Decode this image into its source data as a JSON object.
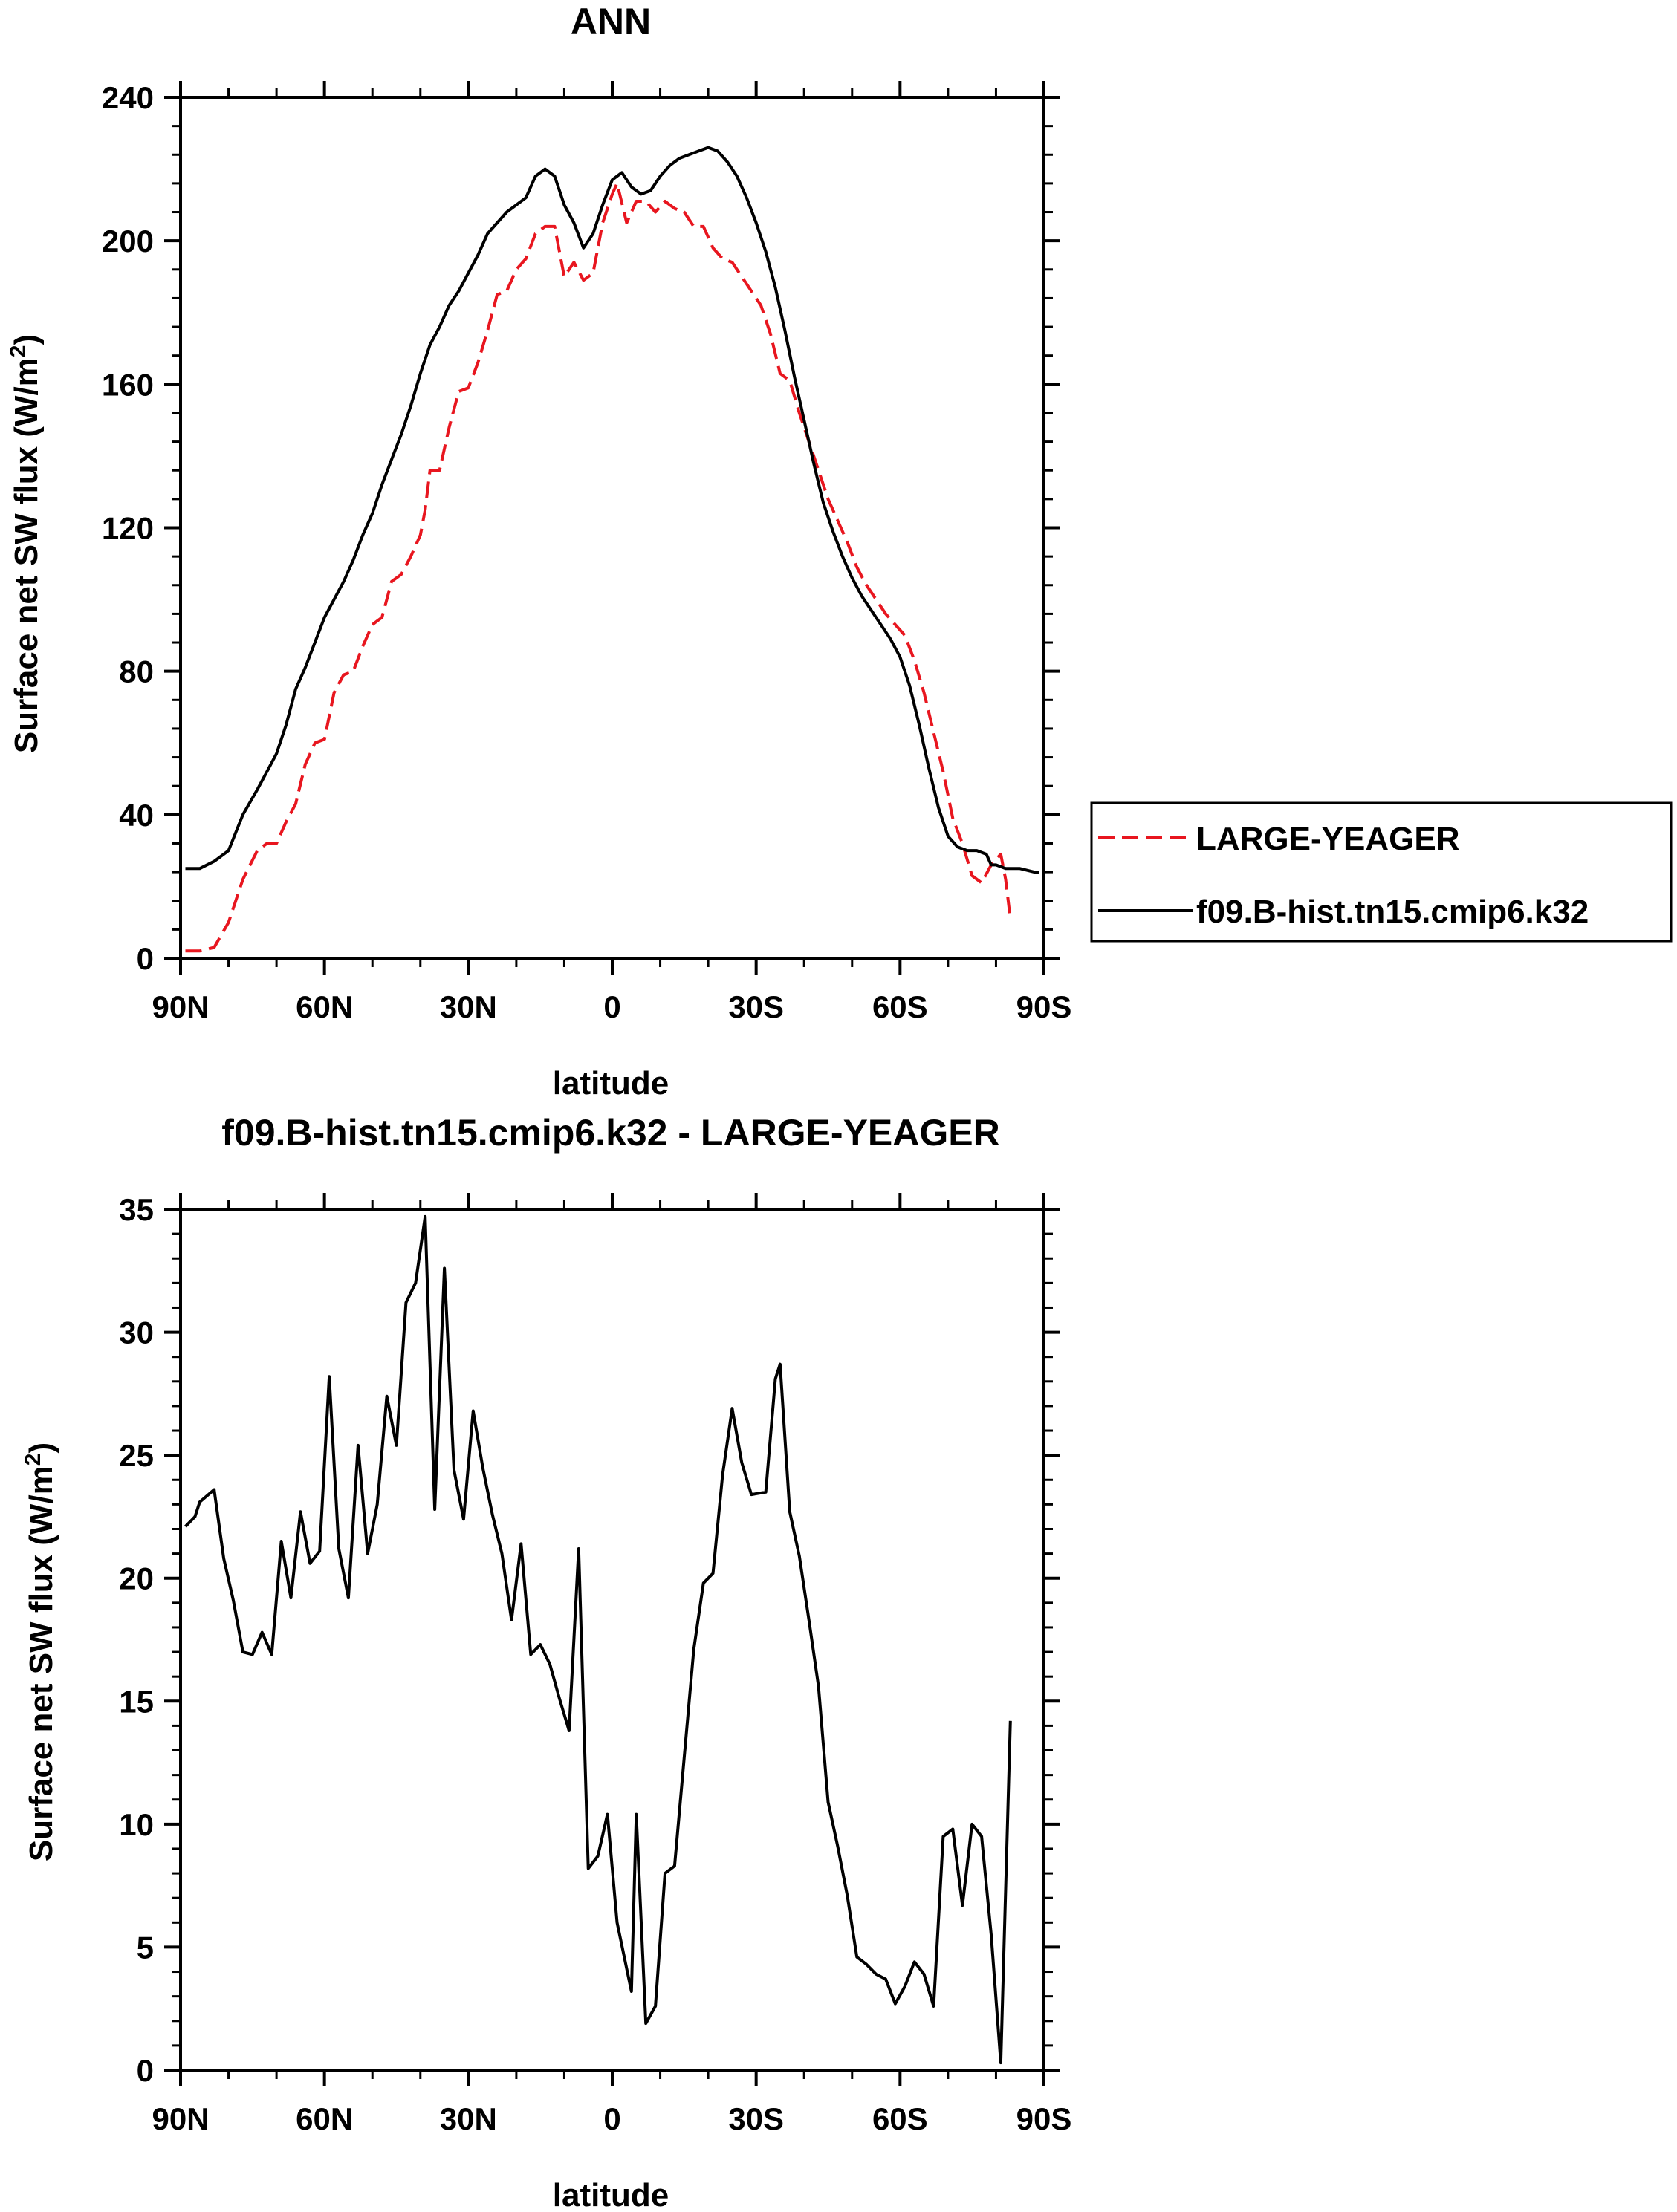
{
  "chart_data": [
    {
      "type": "line",
      "title": "ANN",
      "xlabel": "latitude",
      "ylabel": "Surface net SW flux (W/m",
      "ylabel_sup": "2",
      "ylabel_close": ")",
      "xlim": [
        90,
        -90
      ],
      "ylim": [
        0,
        240
      ],
      "x_ticks": [
        90,
        60,
        30,
        0,
        -30,
        -60,
        -90
      ],
      "x_tick_labels": [
        "90N",
        "60N",
        "30N",
        "0",
        "30S",
        "60S",
        "90S"
      ],
      "y_ticks": [
        0,
        40,
        80,
        120,
        160,
        200,
        240
      ],
      "y_tick_labels": [
        "0",
        "40",
        "80",
        "120",
        "160",
        "200",
        "240"
      ],
      "legend": {
        "placement": "right-middle-outside",
        "entries": [
          "LARGE-YEAGER",
          "f09.B-hist.tn15.cmip6.k32"
        ]
      },
      "series": [
        {
          "name": "LARGE-YEAGER",
          "color": "#e8161f",
          "dash": "dashed",
          "points": [
            [
              89,
              2
            ],
            [
              86,
              2
            ],
            [
              83,
              3
            ],
            [
              80,
              10
            ],
            [
              77,
              22
            ],
            [
              74,
              30
            ],
            [
              72,
              32
            ],
            [
              70,
              32
            ],
            [
              68,
              38
            ],
            [
              66,
              43
            ],
            [
              64,
              54
            ],
            [
              62,
              60
            ],
            [
              60,
              61
            ],
            [
              58,
              74
            ],
            [
              56,
              79
            ],
            [
              54,
              80
            ],
            [
              52,
              87
            ],
            [
              50,
              93
            ],
            [
              48,
              95
            ],
            [
              46,
              105
            ],
            [
              44,
              107
            ],
            [
              42,
              112
            ],
            [
              40,
              118
            ],
            [
              39,
              125
            ],
            [
              38,
              136
            ],
            [
              36,
              136
            ],
            [
              34,
              148
            ],
            [
              32,
              158
            ],
            [
              30,
              159
            ],
            [
              28,
              166
            ],
            [
              26,
              175
            ],
            [
              24,
              185
            ],
            [
              22,
              186
            ],
            [
              20,
              192
            ],
            [
              18,
              195
            ],
            [
              16,
              202
            ],
            [
              14,
              204
            ],
            [
              12,
              204
            ],
            [
              10,
              190
            ],
            [
              8,
              194
            ],
            [
              6,
              189
            ],
            [
              4,
              191
            ],
            [
              2,
              205
            ],
            [
              0,
              213
            ],
            [
              -1,
              216
            ],
            [
              -3,
              205
            ],
            [
              -5,
              211
            ],
            [
              -7,
              211
            ],
            [
              -9,
              208
            ],
            [
              -11,
              211
            ],
            [
              -13,
              209
            ],
            [
              -15,
              208
            ],
            [
              -17,
              204
            ],
            [
              -19,
              204
            ],
            [
              -21,
              198
            ],
            [
              -23,
              195
            ],
            [
              -25,
              194
            ],
            [
              -27,
              190
            ],
            [
              -29,
              186
            ],
            [
              -31,
              182
            ],
            [
              -33,
              174
            ],
            [
              -35,
              163
            ],
            [
              -37,
              161
            ],
            [
              -39,
              152
            ],
            [
              -41,
              144
            ],
            [
              -43,
              136
            ],
            [
              -45,
              128
            ],
            [
              -47,
              122
            ],
            [
              -49,
              116
            ],
            [
              -51,
              109
            ],
            [
              -53,
              104
            ],
            [
              -55,
              100
            ],
            [
              -57,
              96
            ],
            [
              -59,
              93
            ],
            [
              -61,
              90
            ],
            [
              -63,
              83
            ],
            [
              -65,
              74
            ],
            [
              -67,
              63
            ],
            [
              -69,
              52
            ],
            [
              -71,
              39
            ],
            [
              -73,
              32
            ],
            [
              -75,
              23
            ],
            [
              -77,
              21
            ],
            [
              -79,
              26
            ],
            [
              -81,
              29
            ],
            [
              -82,
              22
            ],
            [
              -83,
              11
            ]
          ]
        },
        {
          "name": "f09.B-hist.tn15.cmip6.k32",
          "color": "#000000",
          "dash": "solid",
          "points": [
            [
              89,
              25
            ],
            [
              86,
              25
            ],
            [
              83,
              27
            ],
            [
              80,
              30
            ],
            [
              77,
              40
            ],
            [
              74,
              47
            ],
            [
              72,
              52
            ],
            [
              70,
              57
            ],
            [
              68,
              65
            ],
            [
              66,
              75
            ],
            [
              64,
              81
            ],
            [
              62,
              88
            ],
            [
              60,
              95
            ],
            [
              58,
              100
            ],
            [
              56,
              105
            ],
            [
              54,
              111
            ],
            [
              52,
              118
            ],
            [
              50,
              124
            ],
            [
              48,
              132
            ],
            [
              46,
              139
            ],
            [
              44,
              146
            ],
            [
              42,
              154
            ],
            [
              40,
              163
            ],
            [
              38,
              171
            ],
            [
              36,
              176
            ],
            [
              34,
              182
            ],
            [
              32,
              186
            ],
            [
              30,
              191
            ],
            [
              28,
              196
            ],
            [
              26,
              202
            ],
            [
              24,
              205
            ],
            [
              22,
              208
            ],
            [
              20,
              210
            ],
            [
              18,
              212
            ],
            [
              16,
              218
            ],
            [
              14,
              220
            ],
            [
              12,
              218
            ],
            [
              10,
              210
            ],
            [
              8,
              205
            ],
            [
              6,
              198
            ],
            [
              4,
              202
            ],
            [
              2,
              210
            ],
            [
              0,
              217
            ],
            [
              -2,
              219
            ],
            [
              -4,
              215
            ],
            [
              -6,
              213
            ],
            [
              -8,
              214
            ],
            [
              -10,
              218
            ],
            [
              -12,
              221
            ],
            [
              -14,
              223
            ],
            [
              -16,
              224
            ],
            [
              -18,
              225
            ],
            [
              -20,
              226
            ],
            [
              -22,
              225
            ],
            [
              -24,
              222
            ],
            [
              -26,
              218
            ],
            [
              -28,
              212
            ],
            [
              -30,
              205
            ],
            [
              -32,
              197
            ],
            [
              -34,
              187
            ],
            [
              -36,
              175
            ],
            [
              -38,
              162
            ],
            [
              -40,
              150
            ],
            [
              -42,
              138
            ],
            [
              -44,
              127
            ],
            [
              -46,
              119
            ],
            [
              -48,
              112
            ],
            [
              -50,
              106
            ],
            [
              -52,
              101
            ],
            [
              -54,
              97
            ],
            [
              -56,
              93
            ],
            [
              -58,
              89
            ],
            [
              -60,
              84
            ],
            [
              -62,
              76
            ],
            [
              -64,
              65
            ],
            [
              -66,
              53
            ],
            [
              -68,
              42
            ],
            [
              -70,
              34
            ],
            [
              -72,
              31
            ],
            [
              -74,
              30
            ],
            [
              -76,
              30
            ],
            [
              -78,
              29
            ],
            [
              -79,
              26
            ],
            [
              -80,
              26
            ],
            [
              -82,
              25
            ],
            [
              -85,
              25
            ],
            [
              -88,
              24
            ],
            [
              -89,
              24
            ]
          ]
        }
      ]
    },
    {
      "type": "line",
      "title": "f09.B-hist.tn15.cmip6.k32 - LARGE-YEAGER",
      "xlabel": "latitude",
      "ylabel": "Surface net SW flux (W/m",
      "ylabel_sup": "2",
      "ylabel_close": ")",
      "xlim": [
        90,
        -90
      ],
      "ylim": [
        0,
        35
      ],
      "x_ticks": [
        90,
        60,
        30,
        0,
        -30,
        -60,
        -90
      ],
      "x_tick_labels": [
        "90N",
        "60N",
        "30N",
        "0",
        "30S",
        "60S",
        "90S"
      ],
      "y_ticks": [
        0,
        5,
        10,
        15,
        20,
        25,
        30,
        35
      ],
      "y_tick_labels": [
        "0",
        "5",
        "10",
        "15",
        "20",
        "25",
        "30",
        "35"
      ],
      "series": [
        {
          "name": "f09.B-hist.tn15.cmip6.k32 - LARGE-YEAGER",
          "color": "#000000",
          "dash": "solid",
          "points": [
            [
              89,
              22.1
            ],
            [
              87,
              22.5
            ],
            [
              86,
              23.1
            ],
            [
              83,
              23.6
            ],
            [
              81,
              20.8
            ],
            [
              79,
              19.1
            ],
            [
              77,
              17.0
            ],
            [
              75,
              16.9
            ],
            [
              73,
              17.8
            ],
            [
              71,
              16.9
            ],
            [
              69,
              21.5
            ],
            [
              67,
              19.2
            ],
            [
              65,
              22.7
            ],
            [
              63,
              20.6
            ],
            [
              61,
              21.1
            ],
            [
              59,
              28.2
            ],
            [
              57,
              21.2
            ],
            [
              55,
              19.2
            ],
            [
              53,
              25.4
            ],
            [
              51,
              21.0
            ],
            [
              49,
              23.0
            ],
            [
              47,
              27.4
            ],
            [
              45,
              25.4
            ],
            [
              43,
              31.2
            ],
            [
              41,
              32.0
            ],
            [
              39,
              34.7
            ],
            [
              37,
              22.8
            ],
            [
              35,
              32.6
            ],
            [
              33,
              24.4
            ],
            [
              31,
              22.4
            ],
            [
              29,
              26.8
            ],
            [
              27,
              24.5
            ],
            [
              25,
              22.6
            ],
            [
              23,
              21.0
            ],
            [
              21,
              18.3
            ],
            [
              19,
              21.4
            ],
            [
              17,
              16.9
            ],
            [
              15,
              17.3
            ],
            [
              13,
              16.5
            ],
            [
              11,
              15.1
            ],
            [
              9,
              13.8
            ],
            [
              7,
              21.2
            ],
            [
              5,
              8.2
            ],
            [
              3,
              8.7
            ],
            [
              1,
              10.4
            ],
            [
              -1,
              6.0
            ],
            [
              -4,
              3.2
            ],
            [
              -5,
              10.4
            ],
            [
              -7,
              1.9
            ],
            [
              -9,
              2.6
            ],
            [
              -11,
              8.0
            ],
            [
              -13,
              8.3
            ],
            [
              -15,
              12.7
            ],
            [
              -17,
              17.1
            ],
            [
              -19,
              19.8
            ],
            [
              -21,
              20.2
            ],
            [
              -23,
              24.2
            ],
            [
              -25,
              26.9
            ],
            [
              -27,
              24.7
            ],
            [
              -29,
              23.4
            ],
            [
              -32,
              23.5
            ],
            [
              -34,
              28.1
            ],
            [
              -35,
              28.7
            ],
            [
              -37,
              22.7
            ],
            [
              -39,
              20.9
            ],
            [
              -41,
              18.3
            ],
            [
              -43,
              15.6
            ],
            [
              -45,
              10.9
            ],
            [
              -47,
              9.1
            ],
            [
              -49,
              7.1
            ],
            [
              -51,
              4.6
            ],
            [
              -53,
              4.3
            ],
            [
              -55,
              3.9
            ],
            [
              -57,
              3.7
            ],
            [
              -59,
              2.7
            ],
            [
              -61,
              3.4
            ],
            [
              -63,
              4.4
            ],
            [
              -65,
              3.9
            ],
            [
              -67,
              2.6
            ],
            [
              -69,
              9.5
            ],
            [
              -71,
              9.8
            ],
            [
              -73,
              6.7
            ],
            [
              -75,
              10.0
            ],
            [
              -77,
              9.5
            ],
            [
              -79,
              5.5
            ],
            [
              -81,
              0.3
            ],
            [
              -83,
              14.2
            ]
          ]
        }
      ]
    }
  ]
}
